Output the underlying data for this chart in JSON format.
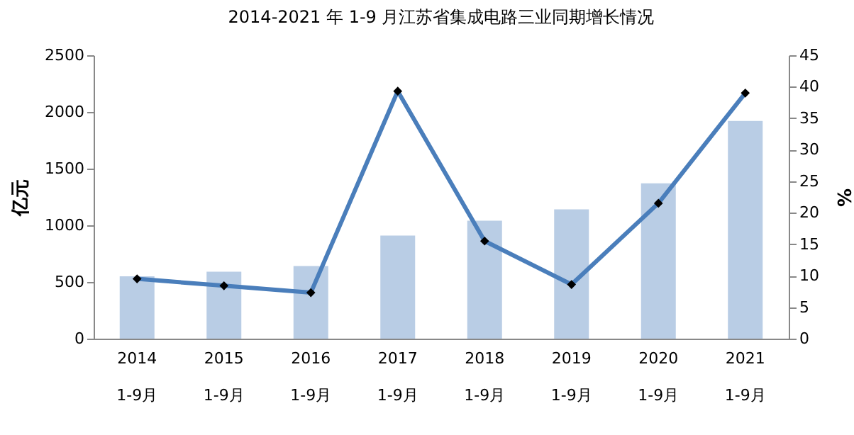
{
  "chart_data": {
    "type": "bar",
    "title": "2014-2021 年 1-9 月江苏省集成电路三业同期增长情况",
    "ylabel": "亿元",
    "y2label": "%",
    "categories": [
      "2014\n1-9月",
      "2015\n1-9月",
      "2016\n1-9月",
      "2017\n1-9月",
      "2018\n1-9月",
      "2019\n1-9月",
      "2020\n1-9月",
      "2021\n1-9月"
    ],
    "series": [
      {
        "color": "#b9cde5",
        "values": [
          550,
          590,
          640,
          910,
          1040,
          1140,
          1370,
          1920
        ]
      },
      {
        "type": "line",
        "axis": "y2",
        "color": "#4a7ebb",
        "marker": "diamond",
        "values": [
          9.5,
          8.4,
          7.3,
          39.3,
          15.5,
          8.6,
          21.5,
          39.0
        ]
      }
    ],
    "ylim": [
      0,
      2500
    ],
    "yticks": [
      0,
      500,
      1000,
      1500,
      2000,
      2500
    ],
    "y2lim": [
      0,
      45
    ],
    "y2ticks": [
      0,
      5,
      10,
      15,
      20,
      25,
      30,
      35,
      40,
      45
    ],
    "grid": false
  }
}
